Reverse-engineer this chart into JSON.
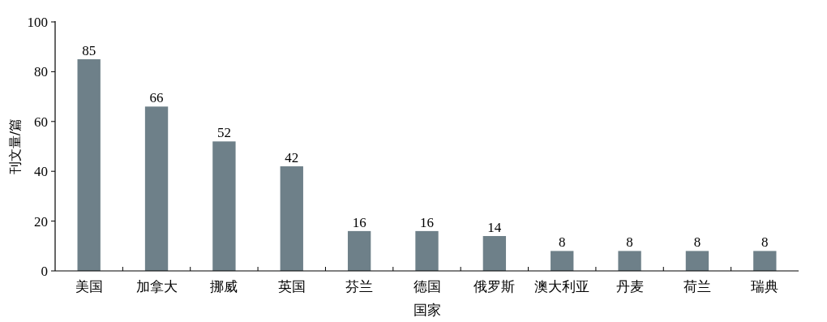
{
  "chart_data": {
    "type": "bar",
    "xlabel": "国家",
    "ylabel": "刊文量/篇",
    "categories": [
      "美国",
      "加拿大",
      "挪威",
      "英国",
      "芬兰",
      "德国",
      "俄罗斯",
      "澳大利亚",
      "丹麦",
      "荷兰",
      "瑞典"
    ],
    "values": [
      85,
      66,
      52,
      42,
      16,
      16,
      14,
      8,
      8,
      8,
      8
    ],
    "color": "#6e8089",
    "ylim": [
      0,
      100
    ],
    "yticks": [
      0,
      20,
      40,
      60,
      80,
      100
    ],
    "data_labels": true
  }
}
